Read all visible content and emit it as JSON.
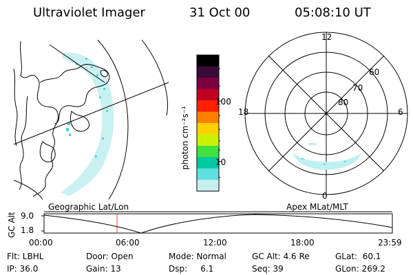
{
  "header": {
    "instrument": "Ultraviolet Imager",
    "date": "31 Oct 00",
    "time": "05:08:10 UT"
  },
  "colorbar": {
    "unit_label": "photon cm⁻²s⁻¹",
    "ticks": [
      "100",
      "10"
    ],
    "colors": [
      "#000000",
      "#3a0a3a",
      "#7a0040",
      "#c00020",
      "#ff2000",
      "#ff8000",
      "#ffd000",
      "#c8f000",
      "#40e040",
      "#00c8a0",
      "#60e0e0",
      "#c8f0f0"
    ]
  },
  "polar_plot": {
    "mlt_labels": {
      "top": "12",
      "left": "18",
      "right": "6",
      "bottom": "0"
    },
    "lat_labels": [
      "60",
      "70",
      "80"
    ]
  },
  "orbit_plot": {
    "y_axis_label": "GC Alt",
    "y_ticks": [
      "9.0",
      "1.8"
    ],
    "left_title": "Geographic Lat/Lon",
    "right_title": "Apex  MLat/MLT",
    "x_ticks": [
      "00:00",
      "06:00",
      "12:00",
      "18:00",
      "23:59"
    ]
  },
  "info": {
    "filter": "Flt: LBHL",
    "ip": "IP: 36.0",
    "door": "Door: Open",
    "gain": "Gain: 13",
    "mode": "Mode: Normal",
    "dsp": "Dsp:     6.1",
    "gc_alt": "GC Alt: 4.6 Re",
    "seq": "Seq: 39",
    "glat": "GLat:  60.1",
    "glon": "GLon: 269.2"
  }
}
